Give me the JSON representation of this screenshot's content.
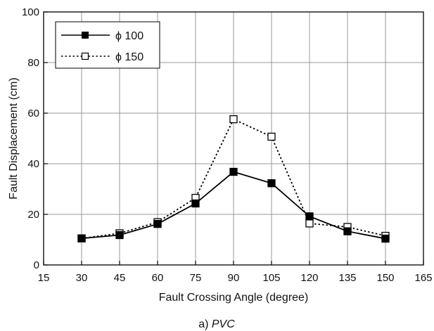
{
  "chart_data": {
    "type": "line",
    "xlabel": "Fault Crossing Angle (degree)",
    "ylabel": "Fault Displacement (cm)",
    "xlim": [
      15,
      165
    ],
    "ylim": [
      0,
      100
    ],
    "xticks": [
      "15",
      "30",
      "45",
      "60",
      "75",
      "90",
      "105",
      "120",
      "135",
      "150",
      "165"
    ],
    "yticks": [
      "0",
      "20",
      "40",
      "60",
      "80",
      "100"
    ],
    "grid": true,
    "legend_position": "top-left",
    "x": [
      30,
      45,
      60,
      75,
      90,
      105,
      120,
      135,
      150
    ],
    "series": [
      {
        "name": "ϕ 100",
        "style": "solid",
        "marker": "filled-square",
        "values": [
          10.5,
          11.8,
          16.2,
          24.3,
          36.8,
          32.3,
          19.2,
          13.3,
          10.4
        ]
      },
      {
        "name": "ϕ 150",
        "style": "dotted",
        "marker": "open-square",
        "values": [
          10.5,
          12.5,
          16.9,
          26.5,
          57.6,
          50.7,
          16.4,
          15.0,
          11.5
        ]
      }
    ]
  },
  "caption": {
    "prefix": "a) ",
    "emphasis": "PVC"
  },
  "colors": {
    "line": "#000000",
    "grid": "#999999",
    "background": "#ffffff"
  }
}
